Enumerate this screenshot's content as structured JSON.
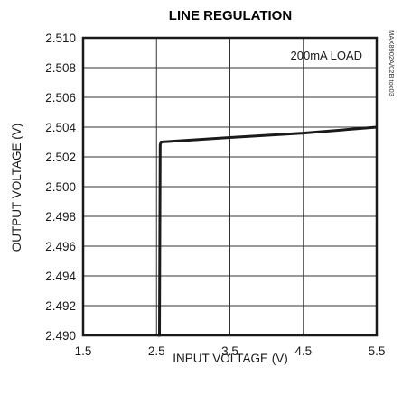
{
  "chart_data": {
    "type": "line",
    "title": "LINE REGULATION",
    "xlabel": "INPUT VOLTAGE (V)",
    "ylabel": "OUTPUT VOLTAGE (V)",
    "annotation": "200mA LOAD",
    "figure_tag": "MAX8902A/02B toc03",
    "xlim": [
      1.5,
      5.5
    ],
    "ylim": [
      2.49,
      2.51
    ],
    "x_ticks": [
      "1.5",
      "2.5",
      "3.5",
      "4.5",
      "5.5"
    ],
    "y_ticks": [
      "2.490",
      "2.492",
      "2.494",
      "2.496",
      "2.498",
      "2.500",
      "2.502",
      "2.504",
      "2.506",
      "2.508",
      "2.510"
    ],
    "grid": true,
    "series": [
      {
        "x": [
          2.52,
          2.54,
          2.55,
          2.56,
          3.5,
          4.5,
          5.5
        ],
        "y": [
          2.49,
          2.49,
          2.5028,
          2.503,
          2.5033,
          2.5036,
          2.504
        ]
      }
    ],
    "colors": {
      "line": "#1a1a1a",
      "frame": "#1a1a1a",
      "grid": "#333333"
    }
  }
}
